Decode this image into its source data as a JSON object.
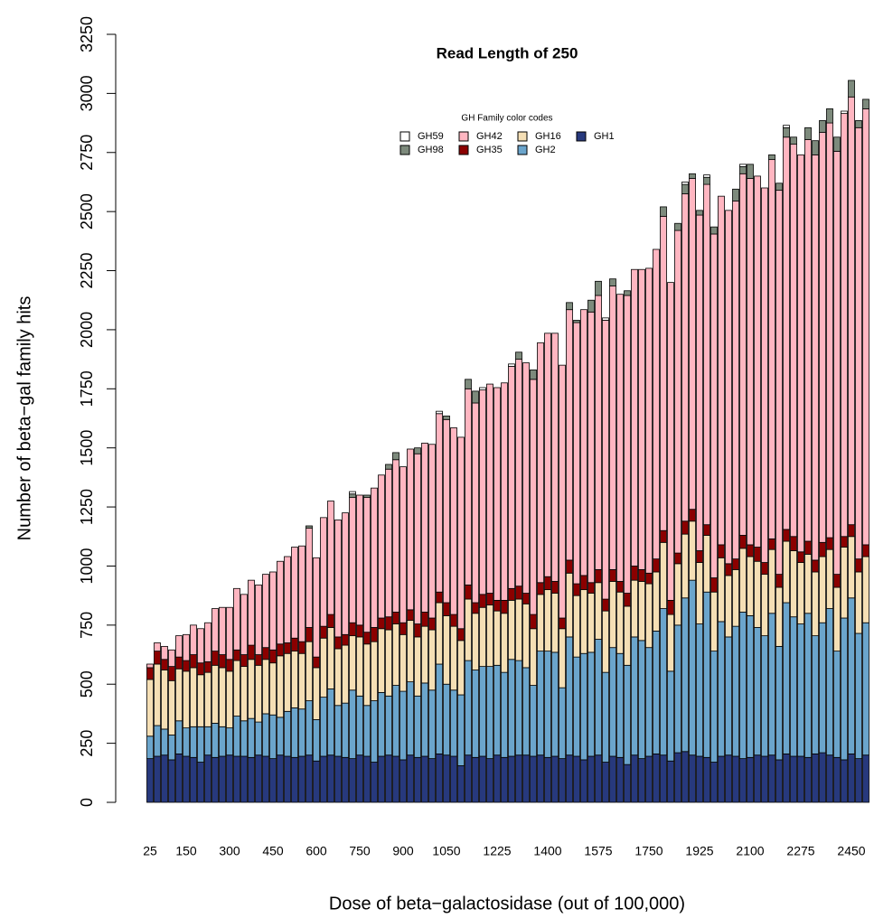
{
  "chart_data": {
    "type": "stacked_bar",
    "title": "Read Length of 250",
    "x_label": "Dose of beta−galactosidase (out of 100,000)",
    "y_label": "Number of beta−gal family hits",
    "legend_title": "GH Family color codes",
    "legend": "top",
    "ylim": [
      0,
      3250
    ],
    "yticks": [
      0,
      250,
      500,
      750,
      1000,
      1250,
      1500,
      1750,
      2000,
      2250,
      2500,
      2750,
      3000,
      3250
    ],
    "categories": [
      25,
      null,
      null,
      null,
      null,
      150,
      null,
      null,
      null,
      null,
      null,
      300,
      null,
      null,
      null,
      null,
      null,
      450,
      null,
      null,
      null,
      null,
      null,
      600,
      null,
      null,
      null,
      null,
      null,
      750,
      null,
      null,
      null,
      null,
      null,
      900,
      null,
      null,
      null,
      null,
      null,
      1050,
      null,
      null,
      null,
      null,
      null,
      null,
      1225,
      null,
      null,
      null,
      null,
      null,
      null,
      1400,
      null,
      null,
      null,
      null,
      null,
      null,
      1575,
      null,
      null,
      null,
      null,
      null,
      null,
      1750,
      null,
      null,
      null,
      null,
      null,
      null,
      1925,
      null,
      null,
      null,
      null,
      null,
      null,
      2100,
      null,
      null,
      null,
      null,
      null,
      null,
      2275,
      null,
      null,
      null,
      null,
      null,
      null,
      2450,
      null,
      null
    ],
    "series": [
      {
        "name": "GH1",
        "color": "#27397d",
        "values": [
          185,
          195,
          200,
          180,
          205,
          195,
          190,
          170,
          200,
          190,
          195,
          200,
          195,
          195,
          190,
          200,
          195,
          185,
          200,
          195,
          190,
          195,
          200,
          175,
          195,
          200,
          195,
          190,
          185,
          200,
          195,
          170,
          195,
          200,
          195,
          180,
          200,
          190,
          195,
          185,
          205,
          200,
          195,
          155,
          200,
          190,
          195,
          185,
          200,
          190,
          195,
          200,
          200,
          195,
          200,
          190,
          195,
          185,
          200,
          195,
          180,
          195,
          200,
          170,
          195,
          190,
          160,
          200,
          185,
          195,
          205,
          200,
          175,
          210,
          215,
          200,
          195,
          190,
          170,
          195,
          200,
          195,
          185,
          190,
          200,
          195,
          200,
          180,
          205,
          195,
          195,
          190,
          205,
          210,
          200,
          190,
          180,
          205,
          185,
          200
        ]
      },
      {
        "name": "GH2",
        "color": "#6ba5cc",
        "values": [
          95,
          130,
          110,
          105,
          140,
          120,
          130,
          150,
          120,
          145,
          125,
          115,
          170,
          150,
          165,
          140,
          180,
          185,
          160,
          190,
          210,
          200,
          230,
          175,
          250,
          280,
          215,
          230,
          290,
          250,
          215,
          260,
          270,
          250,
          300,
          290,
          310,
          260,
          310,
          290,
          380,
          300,
          280,
          300,
          400,
          370,
          380,
          390,
          380,
          360,
          410,
          400,
          370,
          300,
          440,
          450,
          440,
          300,
          500,
          420,
          450,
          440,
          490,
          380,
          460,
          440,
          420,
          500,
          500,
          460,
          520,
          620,
          380,
          540,
          650,
          740,
          560,
          700,
          470,
          570,
          500,
          550,
          620,
          600,
          540,
          510,
          600,
          480,
          640,
          590,
          560,
          610,
          500,
          550,
          620,
          450,
          600,
          660,
          530,
          560
        ]
      },
      {
        "name": "GH16",
        "color": "#f5dfb5",
        "values": [
          240,
          260,
          250,
          230,
          220,
          240,
          250,
          220,
          230,
          245,
          250,
          240,
          235,
          230,
          250,
          240,
          230,
          220,
          260,
          245,
          240,
          235,
          250,
          220,
          250,
          260,
          240,
          245,
          230,
          250,
          260,
          250,
          270,
          280,
          260,
          240,
          260,
          250,
          240,
          255,
          260,
          290,
          270,
          230,
          260,
          240,
          250,
          260,
          230,
          250,
          250,
          260,
          270,
          240,
          240,
          260,
          250,
          250,
          270,
          260,
          270,
          250,
          240,
          260,
          280,
          260,
          250,
          240,
          250,
          270,
          250,
          280,
          240,
          260,
          270,
          250,
          260,
          240,
          250,
          270,
          260,
          240,
          270,
          250,
          280,
          260,
          270,
          250,
          260,
          280,
          260,
          250,
          270,
          280,
          250,
          270,
          300,
          260,
          260,
          280
        ]
      },
      {
        "name": "GH35",
        "color": "#8b0000",
        "values": [
          50,
          55,
          45,
          60,
          50,
          45,
          55,
          50,
          45,
          60,
          55,
          50,
          45,
          50,
          60,
          45,
          50,
          55,
          50,
          45,
          55,
          50,
          60,
          45,
          50,
          55,
          50,
          45,
          55,
          50,
          50,
          60,
          45,
          55,
          50,
          50,
          45,
          55,
          60,
          50,
          45,
          55,
          50,
          50,
          60,
          45,
          55,
          50,
          45,
          55,
          50,
          55,
          45,
          60,
          50,
          55,
          50,
          45,
          55,
          50,
          60,
          45,
          55,
          50,
          50,
          45,
          55,
          60,
          50,
          45,
          55,
          50,
          60,
          45,
          55,
          50,
          50,
          45,
          60,
          55,
          50,
          45,
          55,
          50,
          60,
          50,
          45,
          55,
          50,
          60,
          45,
          55,
          50,
          60,
          50,
          55,
          45,
          50,
          55,
          50
        ]
      },
      {
        "name": "GH42",
        "color": "#ffb6c1",
        "values": [
          15,
          35,
          55,
          70,
          90,
          110,
          125,
          145,
          165,
          180,
          200,
          220,
          260,
          255,
          275,
          295,
          310,
          330,
          350,
          365,
          385,
          405,
          420,
          420,
          460,
          480,
          495,
          515,
          530,
          550,
          570,
          590,
          605,
          625,
          645,
          660,
          680,
          720,
          715,
          735,
          755,
          775,
          790,
          810,
          830,
          845,
          865,
          885,
          900,
          920,
          940,
          960,
          975,
          995,
          1015,
          1030,
          1050,
          1070,
          1060,
          1105,
          1125,
          1145,
          1160,
          1180,
          1200,
          1215,
          1260,
          1255,
          1270,
          1290,
          1310,
          1330,
          1345,
          1365,
          1385,
          1400,
          1420,
          1440,
          1455,
          1475,
          1495,
          1515,
          1530,
          1550,
          1570,
          1585,
          1605,
          1625,
          1660,
          1660,
          1680,
          1700,
          1715,
          1735,
          1755,
          1790,
          1790,
          1810,
          1825,
          1845
        ]
      },
      {
        "name": "GH98",
        "color": "#7d8a7c",
        "values": [
          0,
          0,
          0,
          0,
          0,
          0,
          0,
          0,
          0,
          0,
          0,
          0,
          0,
          0,
          0,
          0,
          0,
          0,
          0,
          0,
          0,
          0,
          10,
          0,
          0,
          0,
          0,
          0,
          15,
          0,
          10,
          0,
          0,
          20,
          30,
          0,
          0,
          25,
          0,
          0,
          0,
          15,
          0,
          0,
          40,
          50,
          0,
          0,
          0,
          0,
          0,
          30,
          0,
          40,
          0,
          0,
          0,
          0,
          30,
          10,
          0,
          50,
          60,
          0,
          30,
          0,
          20,
          0,
          0,
          0,
          0,
          40,
          0,
          30,
          40,
          20,
          20,
          30,
          30,
          0,
          0,
          50,
          30,
          60,
          0,
          0,
          20,
          30,
          40,
          30,
          0,
          50,
          60,
          50,
          60,
          60,
          0,
          70,
          30,
          40
        ]
      },
      {
        "name": "GH59",
        "color": "#ffffff",
        "values": [
          0,
          0,
          0,
          0,
          0,
          0,
          0,
          0,
          0,
          0,
          0,
          0,
          0,
          0,
          0,
          0,
          0,
          0,
          0,
          0,
          0,
          0,
          0,
          0,
          0,
          0,
          0,
          0,
          10,
          0,
          0,
          0,
          0,
          0,
          0,
          0,
          0,
          0,
          0,
          0,
          10,
          0,
          0,
          0,
          0,
          0,
          10,
          0,
          0,
          0,
          10,
          0,
          0,
          0,
          0,
          0,
          0,
          0,
          0,
          0,
          0,
          0,
          0,
          10,
          0,
          0,
          0,
          0,
          0,
          0,
          0,
          0,
          0,
          0,
          10,
          0,
          0,
          10,
          0,
          0,
          0,
          0,
          10,
          0,
          0,
          0,
          0,
          0,
          10,
          0,
          0,
          0,
          0,
          0,
          0,
          0,
          10,
          0,
          0,
          0
        ]
      }
    ]
  }
}
